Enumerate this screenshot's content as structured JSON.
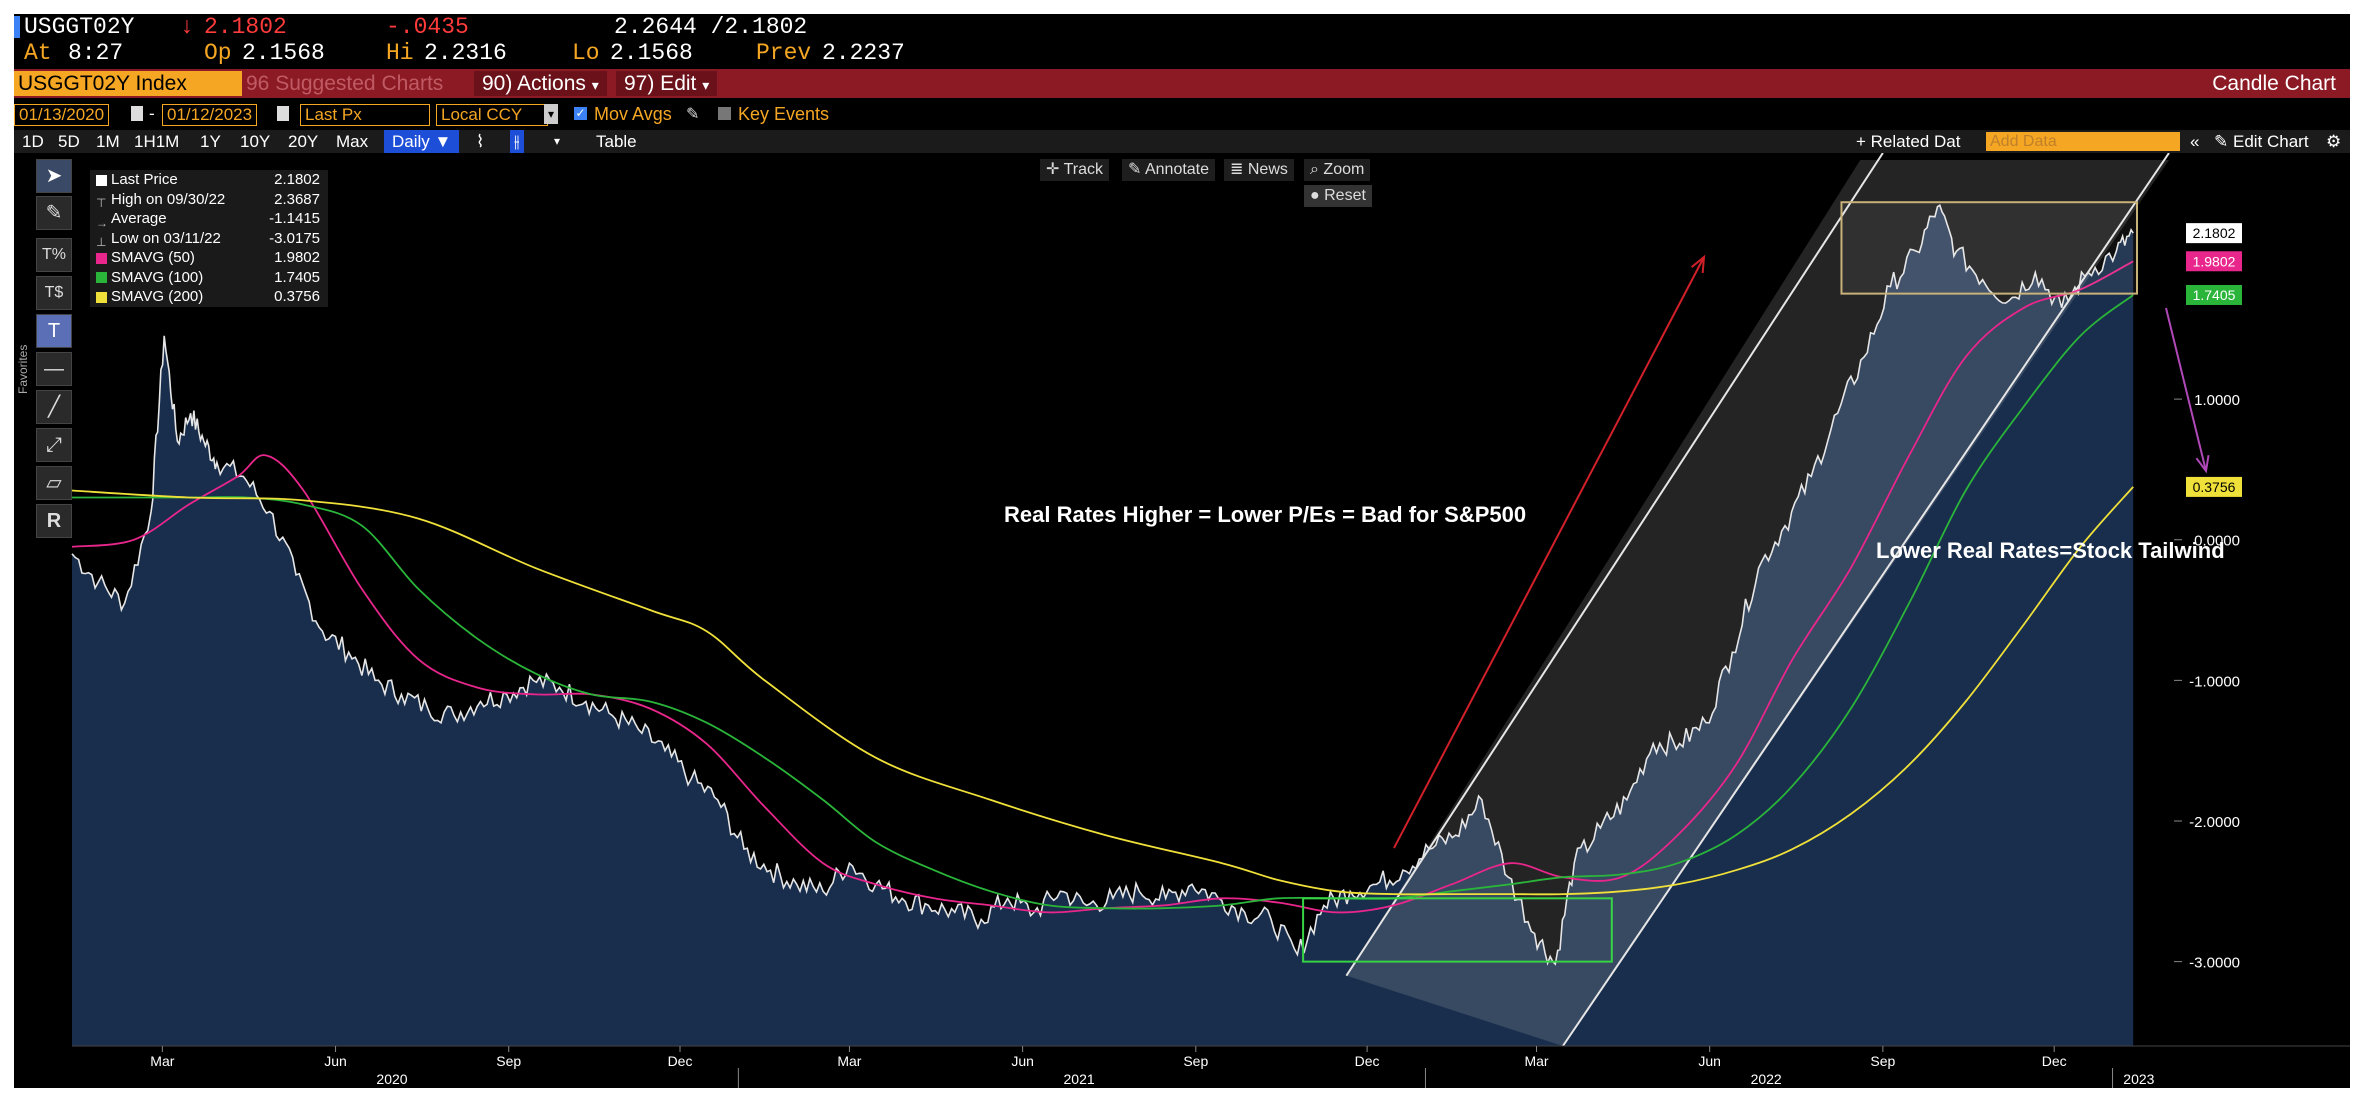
{
  "header": {
    "ticker": "USGGT02Y",
    "price": "2.1802",
    "change": "-.0435",
    "range": "2.2644 /2.1802",
    "at_label": "At",
    "time": "8:27",
    "op_label": "Op",
    "open": "2.1568",
    "hi_label": "Hi",
    "high": "2.2316",
    "lo_label": "Lo",
    "low": "2.1568",
    "prev_label": "Prev",
    "prev": "2.2237"
  },
  "toolbar": {
    "index_label": "USGGT02Y Index",
    "suggested": "96 Suggested Charts",
    "actions": "90) Actions",
    "edit": "97) Edit",
    "chart_name": "Candle Chart",
    "start_date": "01/13/2020",
    "end_date": "01/12/2023",
    "field": "Last Px",
    "currency": "Local CCY",
    "mov_avgs": "Mov Avgs",
    "key_events": "Key Events",
    "periods": [
      "1D",
      "5D",
      "1M",
      "1H1M",
      "1Y",
      "10Y",
      "20Y",
      "Max"
    ],
    "frequency": "Daily",
    "table": "Table",
    "related_data": "+ Related Dat",
    "add_data_placeholder": "Add Data",
    "edit_chart": "Edit Chart",
    "track": "Track",
    "annotate": "Annotate",
    "news": "News",
    "zoom": "Zoom",
    "reset": "Reset",
    "favorites": "Favorites"
  },
  "legend": [
    {
      "label": "Last Price",
      "value": "2.1802",
      "color": "#ffffff"
    },
    {
      "label": "High on 09/30/22",
      "value": "2.3687",
      "color": ""
    },
    {
      "label": "Average",
      "value": "-1.1415",
      "color": ""
    },
    {
      "label": "Low on 03/11/22",
      "value": "-3.0175",
      "color": ""
    },
    {
      "label": "SMAVG (50)",
      "value": "1.9802",
      "color": "#e8268c"
    },
    {
      "label": "SMAVG (100)",
      "value": "1.7405",
      "color": "#2ab53a"
    },
    {
      "label": "SMAVG (200)",
      "value": "0.3756",
      "color": "#f0e03a"
    }
  ],
  "annotations": {
    "real_rates_higher": "Real Rates Higher = Lower P/Es = Bad for S&P500",
    "lower_real_rates": "Lower Real Rates=Stock Tailwind"
  },
  "chart_data": {
    "type": "line",
    "title": "",
    "xlabel": "",
    "ylabel": "",
    "ylim": [
      -3.6,
      2.75
    ],
    "xlim": [
      "2020-01-13",
      "2023-01-31"
    ],
    "yticks": [
      "2.1802",
      "1.0000",
      "0.0000",
      "-1.0000",
      "-2.0000",
      "-3.0000"
    ],
    "ytick_values": [
      2.1802,
      1.0,
      0.0,
      -1.0,
      -2.0,
      -3.0
    ],
    "x_month_labels": [
      "Mar",
      "Jun",
      "Sep",
      "Dec",
      "Mar",
      "Jun",
      "Sep",
      "Dec",
      "Mar",
      "Jun",
      "Sep",
      "Dec"
    ],
    "x_month_dates": [
      "2020-03-01",
      "2020-06-01",
      "2020-09-01",
      "2020-12-01",
      "2021-03-01",
      "2021-06-01",
      "2021-09-01",
      "2021-12-01",
      "2022-03-01",
      "2022-06-01",
      "2022-09-01",
      "2022-12-01"
    ],
    "x_year_labels": [
      "2020",
      "2021",
      "2022",
      "2023"
    ],
    "x_year_dates": [
      "2020-07-01",
      "2021-07-01",
      "2022-07-01",
      "2023-01-15"
    ],
    "value_tags": [
      "2.1802",
      "1.9802",
      "1.7405",
      "0.3756"
    ],
    "series": [
      {
        "name": "Last Price",
        "color": "#e6e6e6",
        "fill": "#1a3050",
        "dates": [
          "2020-01-13",
          "2020-01-27",
          "2020-02-10",
          "2020-02-24",
          "2020-03-02",
          "2020-03-09",
          "2020-03-16",
          "2020-03-23",
          "2020-03-30",
          "2020-04-13",
          "2020-04-27",
          "2020-05-11",
          "2020-05-25",
          "2020-06-08",
          "2020-06-22",
          "2020-07-06",
          "2020-07-20",
          "2020-08-03",
          "2020-08-17",
          "2020-08-31",
          "2020-09-14",
          "2020-09-28",
          "2020-10-12",
          "2020-10-26",
          "2020-11-09",
          "2020-11-23",
          "2020-12-07",
          "2020-12-21",
          "2021-01-04",
          "2021-01-18",
          "2021-02-01",
          "2021-02-15",
          "2021-03-01",
          "2021-03-15",
          "2021-03-29",
          "2021-04-12",
          "2021-04-26",
          "2021-05-10",
          "2021-05-24",
          "2021-06-07",
          "2021-06-21",
          "2021-07-05",
          "2021-07-19",
          "2021-08-02",
          "2021-08-16",
          "2021-08-30",
          "2021-09-13",
          "2021-09-27",
          "2021-10-11",
          "2021-10-25",
          "2021-11-08",
          "2021-11-22",
          "2021-12-06",
          "2021-12-20",
          "2022-01-03",
          "2022-01-17",
          "2022-01-31",
          "2022-02-14",
          "2022-02-28",
          "2022-03-11",
          "2022-03-21",
          "2022-04-04",
          "2022-04-18",
          "2022-05-02",
          "2022-05-16",
          "2022-05-30",
          "2022-06-13",
          "2022-06-27",
          "2022-07-11",
          "2022-07-25",
          "2022-08-08",
          "2022-08-22",
          "2022-09-05",
          "2022-09-19",
          "2022-09-30",
          "2022-10-10",
          "2022-10-24",
          "2022-11-07",
          "2022-11-21",
          "2022-12-05",
          "2022-12-19",
          "2023-01-03",
          "2023-01-12"
        ],
        "values": [
          -0.1,
          -0.3,
          -0.45,
          0.2,
          1.45,
          0.7,
          0.9,
          0.7,
          0.55,
          0.45,
          0.2,
          -0.25,
          -0.65,
          -0.8,
          -1.0,
          -1.1,
          -1.2,
          -1.25,
          -1.15,
          -1.1,
          -1.0,
          -1.05,
          -1.15,
          -1.25,
          -1.35,
          -1.5,
          -1.7,
          -1.85,
          -2.2,
          -2.35,
          -2.45,
          -2.5,
          -2.3,
          -2.45,
          -2.55,
          -2.6,
          -2.65,
          -2.7,
          -2.55,
          -2.65,
          -2.5,
          -2.6,
          -2.55,
          -2.5,
          -2.55,
          -2.45,
          -2.55,
          -2.65,
          -2.7,
          -2.95,
          -2.6,
          -2.5,
          -2.45,
          -2.35,
          -2.2,
          -2.1,
          -1.85,
          -2.4,
          -2.8,
          -3.0175,
          -2.3,
          -2.05,
          -1.85,
          -1.45,
          -1.45,
          -1.3,
          -0.8,
          -0.2,
          0.1,
          0.45,
          0.9,
          1.3,
          1.8,
          2.05,
          2.3687,
          2.05,
          1.85,
          1.7,
          1.9,
          1.65,
          1.9,
          2.05,
          2.1802
        ]
      },
      {
        "name": "SMAVG (50)",
        "color": "#e8268c",
        "dates": [
          "2020-01-13",
          "2020-02-15",
          "2020-03-15",
          "2020-04-10",
          "2020-04-25",
          "2020-05-15",
          "2020-06-15",
          "2020-07-15",
          "2020-08-15",
          "2020-09-15",
          "2020-10-15",
          "2020-11-15",
          "2020-12-15",
          "2021-01-15",
          "2021-02-15",
          "2021-03-15",
          "2021-04-15",
          "2021-05-15",
          "2021-06-15",
          "2021-07-15",
          "2021-08-15",
          "2021-09-15",
          "2021-10-15",
          "2021-11-15",
          "2021-12-15",
          "2022-01-15",
          "2022-02-15",
          "2022-03-15",
          "2022-04-15",
          "2022-05-15",
          "2022-06-15",
          "2022-07-15",
          "2022-08-15",
          "2022-09-15",
          "2022-10-15",
          "2022-11-15",
          "2022-12-15",
          "2023-01-12"
        ],
        "values": [
          -0.05,
          0.0,
          0.25,
          0.45,
          0.6,
          0.35,
          -0.35,
          -0.85,
          -1.05,
          -1.1,
          -1.1,
          -1.2,
          -1.45,
          -1.9,
          -2.3,
          -2.45,
          -2.55,
          -2.6,
          -2.65,
          -2.62,
          -2.6,
          -2.55,
          -2.58,
          -2.65,
          -2.6,
          -2.45,
          -2.3,
          -2.4,
          -2.4,
          -2.1,
          -1.6,
          -0.85,
          -0.2,
          0.6,
          1.3,
          1.65,
          1.78,
          1.9802
        ]
      },
      {
        "name": "SMAVG (100)",
        "color": "#2ab53a",
        "dates": [
          "2020-01-13",
          "2020-03-15",
          "2020-04-15",
          "2020-05-15",
          "2020-06-15",
          "2020-07-15",
          "2020-08-15",
          "2020-09-15",
          "2020-10-15",
          "2020-11-15",
          "2020-12-15",
          "2021-01-15",
          "2021-02-15",
          "2021-03-15",
          "2021-04-15",
          "2021-05-15",
          "2021-06-15",
          "2021-07-15",
          "2021-08-15",
          "2021-09-15",
          "2021-10-15",
          "2021-11-15",
          "2021-12-15",
          "2022-01-15",
          "2022-02-15",
          "2022-03-15",
          "2022-04-15",
          "2022-05-15",
          "2022-06-15",
          "2022-07-15",
          "2022-08-15",
          "2022-09-15",
          "2022-10-15",
          "2022-11-15",
          "2022-12-15",
          "2023-01-12"
        ],
        "values": [
          0.3,
          0.3,
          0.3,
          0.25,
          0.1,
          -0.35,
          -0.7,
          -0.95,
          -1.1,
          -1.15,
          -1.3,
          -1.55,
          -1.85,
          -2.15,
          -2.35,
          -2.5,
          -2.6,
          -2.62,
          -2.62,
          -2.6,
          -2.55,
          -2.55,
          -2.55,
          -2.5,
          -2.45,
          -2.4,
          -2.38,
          -2.3,
          -2.1,
          -1.75,
          -1.2,
          -0.45,
          0.35,
          0.95,
          1.45,
          1.7405
        ]
      },
      {
        "name": "SMAVG (200)",
        "color": "#f0e03a",
        "dates": [
          "2020-01-13",
          "2020-03-15",
          "2020-05-15",
          "2020-07-15",
          "2020-09-15",
          "2020-11-15",
          "2020-12-15",
          "2021-01-15",
          "2021-03-15",
          "2021-05-15",
          "2021-07-15",
          "2021-09-15",
          "2021-10-15",
          "2021-11-15",
          "2021-12-15",
          "2022-01-15",
          "2022-02-15",
          "2022-03-15",
          "2022-04-15",
          "2022-05-15",
          "2022-06-15",
          "2022-07-15",
          "2022-08-15",
          "2022-09-15",
          "2022-10-15",
          "2022-11-15",
          "2022-12-15",
          "2023-01-12"
        ],
        "values": [
          0.35,
          0.3,
          0.28,
          0.15,
          -0.2,
          -0.5,
          -0.65,
          -1.0,
          -1.55,
          -1.85,
          -2.1,
          -2.3,
          -2.42,
          -2.5,
          -2.52,
          -2.52,
          -2.52,
          -2.52,
          -2.5,
          -2.45,
          -2.35,
          -2.2,
          -1.95,
          -1.6,
          -1.15,
          -0.6,
          -0.05,
          0.3756
        ]
      }
    ]
  }
}
